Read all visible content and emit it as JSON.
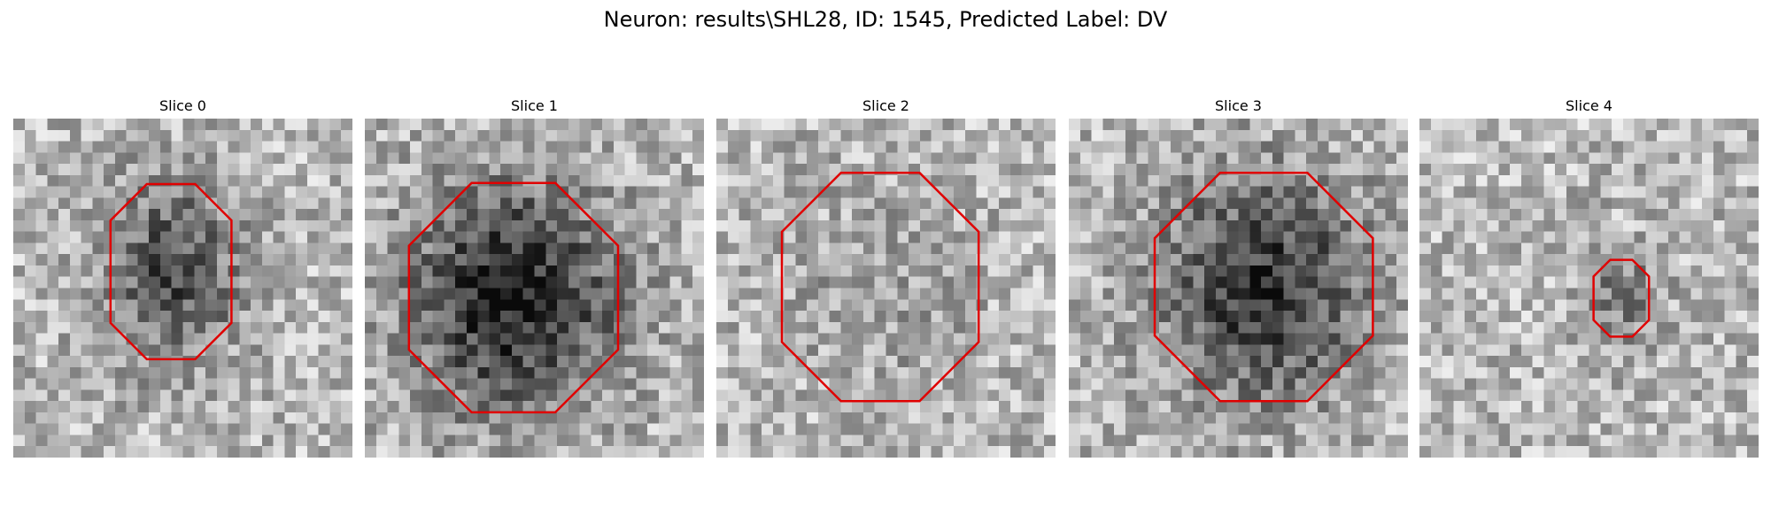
{
  "title": "Neuron: results\\SHL28, ID: 1545, Predicted Label: DV",
  "panels": [
    {
      "title": "Slice 0"
    },
    {
      "title": "Slice 1"
    },
    {
      "title": "Slice 2"
    },
    {
      "title": "Slice 3"
    },
    {
      "title": "Slice 4"
    }
  ]
}
